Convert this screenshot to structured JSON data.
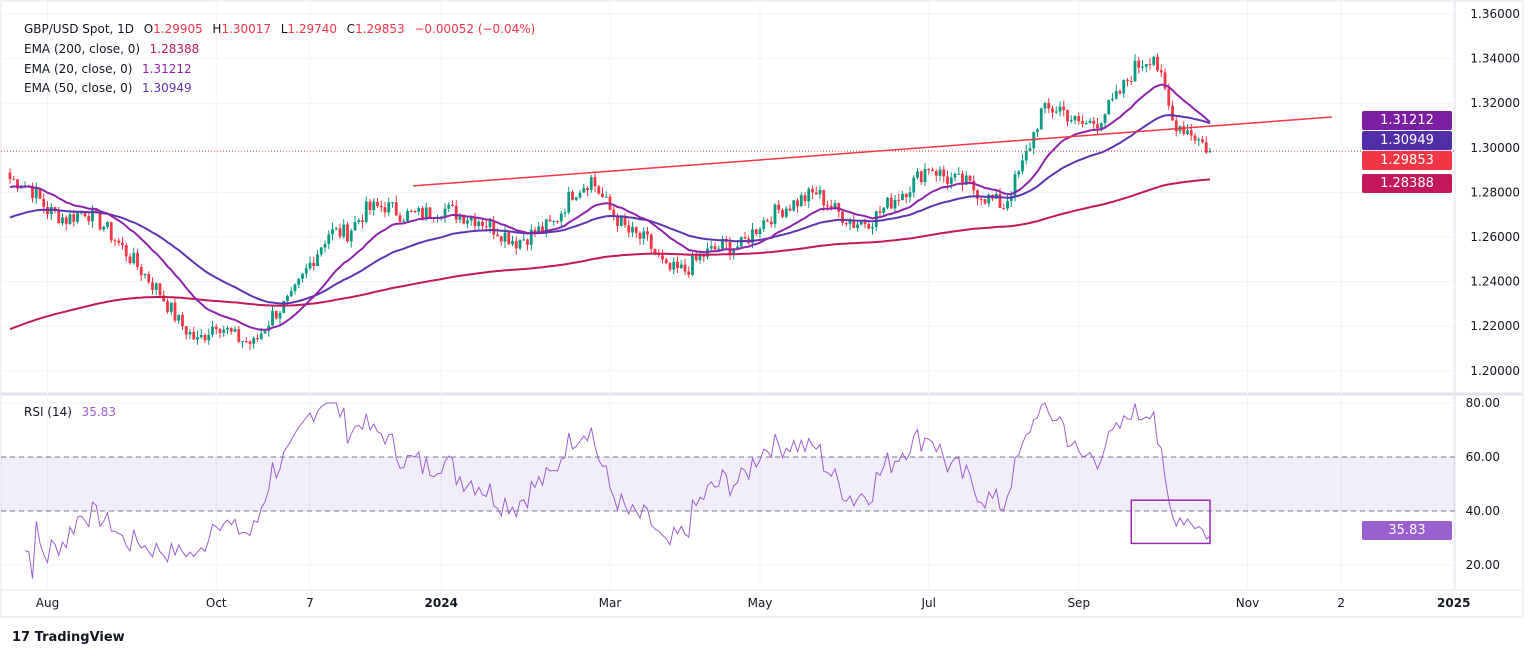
{
  "header": {
    "symbol": "GBP/USD Spot, 1D",
    "o_label": "O",
    "o": "1.29905",
    "h_label": "H",
    "h": "1.30017",
    "l_label": "L",
    "l": "1.29740",
    "c_label": "C",
    "c": "1.29853",
    "change": "−0.00052 (−0.04%)"
  },
  "indicators": [
    {
      "label": "EMA (200, close, 0)",
      "value": "1.28388",
      "color": "#c2185b"
    },
    {
      "label": "EMA (20, close, 0)",
      "value": "1.31212",
      "color": "#8e24aa"
    },
    {
      "label": "EMA (50, close, 0)",
      "value": "1.30949",
      "color": "#5e35b1"
    }
  ],
  "rsi": {
    "label": "RSI (14)",
    "value": "35.83",
    "color": "#9c5fd0"
  },
  "price_tags": [
    {
      "value": "1.31212",
      "price": 1.31212,
      "color": "#7b1fa2"
    },
    {
      "value": "1.30949",
      "price": 1.30949,
      "color": "#512da8"
    },
    {
      "value": "1.29853",
      "price": 1.29853,
      "color": "#f23645"
    },
    {
      "value": "1.28388",
      "price": 1.28388,
      "color": "#c2185b"
    }
  ],
  "brand": "TradingView",
  "chart_data": {
    "type": "candlestick",
    "title": "GBP/USD Spot, 1D",
    "price_axis": {
      "ticks": [
        "1.36000",
        "1.34000",
        "1.32000",
        "1.30000",
        "1.28000",
        "1.26000",
        "1.24000",
        "1.22000",
        "1.20000"
      ],
      "range": [
        1.195,
        1.362
      ]
    },
    "rsi_axis": {
      "ticks": [
        "80.00",
        "60.00",
        "40.00",
        "20.00"
      ],
      "band": [
        40,
        60
      ],
      "range": [
        12,
        85
      ]
    },
    "x_ticks": [
      {
        "label": "Aug",
        "week": 2
      },
      {
        "label": "Oct",
        "week": 11
      },
      {
        "label": "7",
        "week": 16
      },
      {
        "label": "2024",
        "week": 23
      },
      {
        "label": "Mar",
        "week": 32
      },
      {
        "label": "May",
        "week": 40
      },
      {
        "label": "Jul",
        "week": 49
      },
      {
        "label": "Sep",
        "week": 57
      },
      {
        "label": "Nov",
        "week": 66
      },
      {
        "label": "2",
        "week": 71
      },
      {
        "label": "2025",
        "week": 77
      }
    ],
    "weekly_closes": [
      1.286,
      1.283,
      1.272,
      1.268,
      1.272,
      1.265,
      1.255,
      1.245,
      1.235,
      1.222,
      1.213,
      1.222,
      1.215,
      1.212,
      1.225,
      1.232,
      1.248,
      1.262,
      1.262,
      1.272,
      1.274,
      1.27,
      1.27,
      1.273,
      1.27,
      1.268,
      1.263,
      1.258,
      1.262,
      1.266,
      1.28,
      1.286,
      1.272,
      1.262,
      1.258,
      1.245,
      1.245,
      1.252,
      1.256,
      1.256,
      1.266,
      1.272,
      1.276,
      1.28,
      1.272,
      1.266,
      1.268,
      1.276,
      1.283,
      1.292,
      1.286,
      1.284,
      1.278,
      1.274,
      1.292,
      1.316,
      1.318,
      1.31,
      1.312,
      1.322,
      1.336,
      1.342,
      1.312,
      1.307,
      1.2985
    ],
    "ema_seed": {
      "ema20": 1.282,
      "ema50": 1.268,
      "ema200": 1.218
    },
    "trendline": {
      "start": {
        "week": 21.5,
        "price": 1.2829
      },
      "end": {
        "week": 70.5,
        "price": 1.3138
      },
      "color": "#f23645"
    },
    "highlight_box": {
      "week_start": 59.8,
      "week_end": 64,
      "rsi_top": 44,
      "rsi_bottom": 28,
      "color": "#9c27b0"
    },
    "up_color": "#089981",
    "down_color": "#f23645"
  }
}
